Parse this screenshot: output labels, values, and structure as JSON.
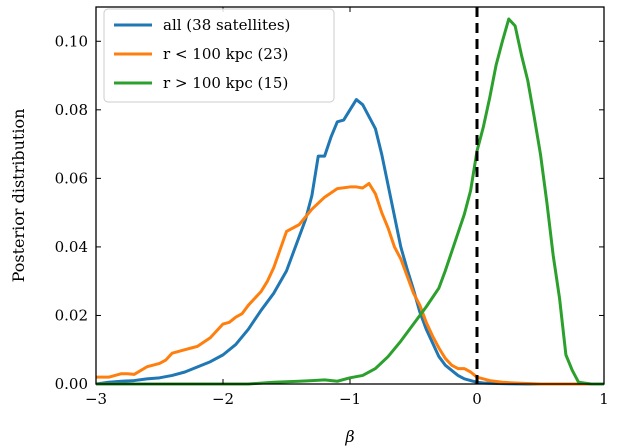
{
  "chart_data": {
    "type": "line",
    "xlabel": "β",
    "ylabel": "Posterior distribution",
    "xlim": [
      -3,
      1
    ],
    "ylim": [
      0,
      0.11
    ],
    "xticks": [
      -3,
      -2,
      -1,
      0,
      1
    ],
    "xtick_labels": [
      "−3",
      "−2",
      "−1",
      "0",
      "1"
    ],
    "yticks": [
      0.0,
      0.02,
      0.04,
      0.06,
      0.08,
      0.1
    ],
    "ytick_labels": [
      "0.00",
      "0.02",
      "0.04",
      "0.06",
      "0.08",
      "0.10"
    ],
    "grid": false,
    "legend_position": "top-left",
    "vline": {
      "x": 0,
      "style": "dashed",
      "color": "#000000"
    },
    "series": [
      {
        "name": "all (38 satellites)",
        "color": "#1f77b4",
        "x": [
          -3.0,
          -2.9,
          -2.8,
          -2.7,
          -2.6,
          -2.5,
          -2.4,
          -2.3,
          -2.2,
          -2.1,
          -2.0,
          -1.9,
          -1.8,
          -1.7,
          -1.6,
          -1.5,
          -1.4,
          -1.35,
          -1.3,
          -1.25,
          -1.2,
          -1.15,
          -1.1,
          -1.05,
          -1.0,
          -0.95,
          -0.9,
          -0.85,
          -0.8,
          -0.75,
          -0.7,
          -0.65,
          -0.6,
          -0.55,
          -0.5,
          -0.45,
          -0.4,
          -0.35,
          -0.3,
          -0.25,
          -0.2,
          -0.15,
          -0.1,
          -0.05,
          0.0,
          0.05,
          0.1,
          0.2,
          0.4,
          0.7,
          1.0
        ],
        "y": [
          0.0,
          0.0005,
          0.0008,
          0.001,
          0.0015,
          0.0018,
          0.0025,
          0.0035,
          0.005,
          0.0065,
          0.0085,
          0.0115,
          0.016,
          0.0215,
          0.0265,
          0.033,
          0.043,
          0.048,
          0.055,
          0.0665,
          0.0665,
          0.072,
          0.0765,
          0.077,
          0.08,
          0.083,
          0.0815,
          0.078,
          0.0745,
          0.067,
          0.058,
          0.049,
          0.04,
          0.0335,
          0.0275,
          0.021,
          0.016,
          0.012,
          0.008,
          0.0055,
          0.004,
          0.0025,
          0.0015,
          0.001,
          0.0005,
          0.0003,
          0.0002,
          0.0001,
          0.0,
          0.0,
          0.0
        ]
      },
      {
        "name": "r < 100 kpc (23)",
        "color": "#ff7f0e",
        "x": [
          -3.0,
          -2.9,
          -2.8,
          -2.75,
          -2.7,
          -2.6,
          -2.5,
          -2.45,
          -2.4,
          -2.3,
          -2.25,
          -2.2,
          -2.1,
          -2.0,
          -1.95,
          -1.9,
          -1.85,
          -1.8,
          -1.7,
          -1.65,
          -1.6,
          -1.5,
          -1.4,
          -1.3,
          -1.2,
          -1.1,
          -1.0,
          -0.95,
          -0.9,
          -0.85,
          -0.8,
          -0.75,
          -0.7,
          -0.65,
          -0.6,
          -0.55,
          -0.5,
          -0.45,
          -0.4,
          -0.35,
          -0.3,
          -0.25,
          -0.2,
          -0.15,
          -0.1,
          -0.05,
          0.0,
          0.1,
          0.2,
          0.3,
          0.5,
          1.0
        ],
        "y": [
          0.002,
          0.002,
          0.003,
          0.003,
          0.0028,
          0.005,
          0.006,
          0.007,
          0.009,
          0.01,
          0.0105,
          0.011,
          0.0135,
          0.0175,
          0.018,
          0.0195,
          0.0205,
          0.023,
          0.027,
          0.03,
          0.034,
          0.0445,
          0.0465,
          0.051,
          0.0545,
          0.057,
          0.0575,
          0.0575,
          0.0572,
          0.0585,
          0.0555,
          0.05,
          0.0455,
          0.04,
          0.0365,
          0.0315,
          0.0265,
          0.023,
          0.018,
          0.014,
          0.0105,
          0.0075,
          0.0055,
          0.0045,
          0.0045,
          0.0035,
          0.002,
          0.001,
          0.0005,
          0.0003,
          0.0,
          0.0
        ]
      },
      {
        "name": "r > 100 kpc (15)",
        "color": "#2ca02c",
        "x": [
          -3.0,
          -2.5,
          -2.0,
          -1.8,
          -1.6,
          -1.4,
          -1.3,
          -1.2,
          -1.1,
          -1.0,
          -0.9,
          -0.8,
          -0.7,
          -0.6,
          -0.5,
          -0.4,
          -0.3,
          -0.25,
          -0.2,
          -0.15,
          -0.1,
          -0.05,
          0.0,
          0.05,
          0.1,
          0.15,
          0.2,
          0.25,
          0.3,
          0.35,
          0.4,
          0.45,
          0.5,
          0.55,
          0.6,
          0.65,
          0.7,
          0.75,
          0.8,
          0.9,
          1.0
        ],
        "y": [
          0.0,
          0.0,
          0.0,
          0.0,
          0.0005,
          0.0008,
          0.001,
          0.0012,
          0.0008,
          0.0018,
          0.0025,
          0.0045,
          0.008,
          0.0125,
          0.0175,
          0.0225,
          0.028,
          0.033,
          0.0385,
          0.044,
          0.0495,
          0.0565,
          0.068,
          0.075,
          0.0835,
          0.093,
          0.1,
          0.1065,
          0.1045,
          0.096,
          0.0885,
          0.078,
          0.067,
          0.053,
          0.0375,
          0.025,
          0.0085,
          0.004,
          0.0005,
          0.0,
          0.0
        ]
      }
    ]
  }
}
